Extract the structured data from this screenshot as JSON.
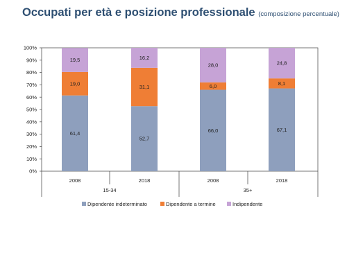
{
  "title": "Occupati per età e posizione professionale",
  "subtitle": "(composizione percentuale)",
  "colors": {
    "dipendente_indeterminato": "#8e9fbd",
    "dipendente_termine": "#ef7e35",
    "indipendente": "#c6a3d6"
  },
  "chart_data": {
    "type": "bar",
    "stacked": true,
    "categories": [
      "2008",
      "2018",
      "2008",
      "2018"
    ],
    "groups": [
      {
        "label": "15-34",
        "categories": [
          "2008",
          "2018"
        ]
      },
      {
        "label": "35+",
        "categories": [
          "2008",
          "2018"
        ]
      }
    ],
    "series": [
      {
        "name": "Dipendente indeterminato",
        "values": [
          61.4,
          52.7,
          66.0,
          67.1
        ],
        "labels": [
          "61,4",
          "52,7",
          "66,0",
          "67,1"
        ],
        "color": "#8e9fbd"
      },
      {
        "name": "Dipendente a termine",
        "values": [
          19.0,
          31.1,
          6.0,
          8.1
        ],
        "labels": [
          "19,0",
          "31,1",
          "6,0",
          "8,1"
        ],
        "color": "#ef7e35"
      },
      {
        "name": "Indipendente",
        "values": [
          19.5,
          16.2,
          28.0,
          24.8
        ],
        "labels": [
          "19,5",
          "16,2",
          "28,0",
          "24,8"
        ],
        "color": "#c6a3d6"
      }
    ],
    "yticks": [
      "0%",
      "10%",
      "20%",
      "30%",
      "40%",
      "50%",
      "60%",
      "70%",
      "80%",
      "90%",
      "100%"
    ],
    "ylim": [
      0,
      100
    ],
    "grid": false,
    "legend": "bottom"
  }
}
